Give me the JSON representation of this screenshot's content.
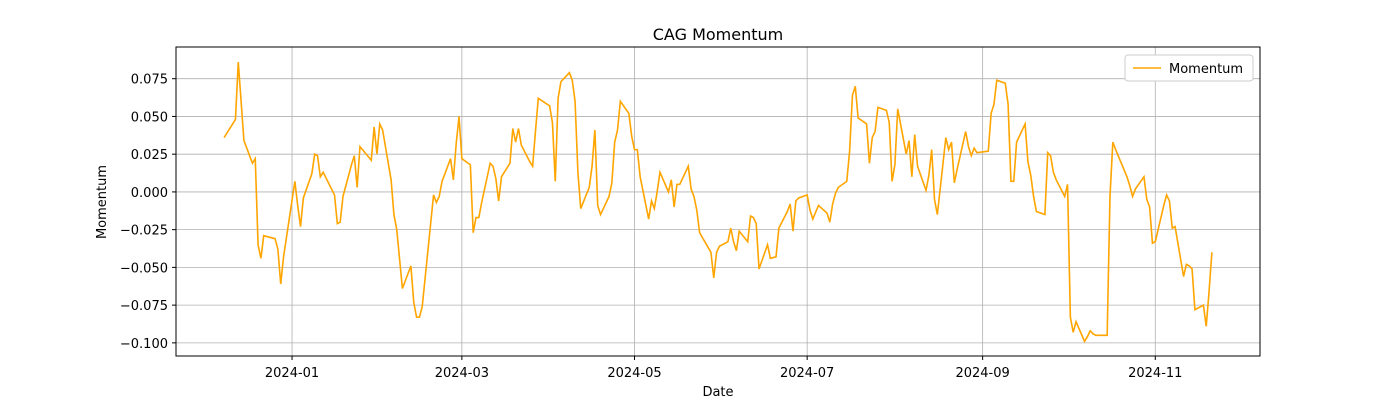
{
  "chart_data": {
    "type": "line",
    "title": "CAG Momentum",
    "xlabel": "Date",
    "ylabel": "Momentum",
    "grid": true,
    "legend": "upper right",
    "xlim": [
      "2023-11-21",
      "2024-12-08"
    ],
    "xticks": [
      {
        "value": "2024-01-01",
        "label": "2024-01"
      },
      {
        "value": "2024-03-01",
        "label": "2024-03"
      },
      {
        "value": "2024-05-01",
        "label": "2024-05"
      },
      {
        "value": "2024-07-01",
        "label": "2024-07"
      },
      {
        "value": "2024-09-01",
        "label": "2024-09"
      },
      {
        "value": "2024-11-01",
        "label": "2024-11"
      }
    ],
    "ylim": [
      -0.1087,
      0.096
    ],
    "yticks": [
      {
        "value": -0.1,
        "label": "−0.100"
      },
      {
        "value": -0.075,
        "label": "−0.075"
      },
      {
        "value": -0.05,
        "label": "−0.050"
      },
      {
        "value": -0.025,
        "label": "−0.025"
      },
      {
        "value": 0,
        "label": "0.000"
      },
      {
        "value": 0.025,
        "label": "0.025"
      },
      {
        "value": 0.05,
        "label": "0.050"
      },
      {
        "value": 0.075,
        "label": "0.075"
      }
    ],
    "x": [
      "2023-12-08",
      "2023-12-12",
      "2023-12-13",
      "2023-12-15",
      "2023-12-18",
      "2023-12-19",
      "2023-12-20",
      "2023-12-21",
      "2023-12-22",
      "2023-12-26",
      "2023-12-27",
      "2023-12-28",
      "2023-12-29",
      "2024-01-02",
      "2024-01-03",
      "2024-01-04",
      "2024-01-05",
      "2024-01-08",
      "2024-01-09",
      "2024-01-10",
      "2024-01-11",
      "2024-01-12",
      "2024-01-16",
      "2024-01-17",
      "2024-01-18",
      "2024-01-19",
      "2024-01-22",
      "2024-01-23",
      "2024-01-24",
      "2024-01-25",
      "2024-01-29",
      "2024-01-30",
      "2024-01-31",
      "2024-02-01",
      "2024-02-02",
      "2024-02-05",
      "2024-02-06",
      "2024-02-07",
      "2024-02-09",
      "2024-02-12",
      "2024-02-13",
      "2024-02-14",
      "2024-02-15",
      "2024-02-16",
      "2024-02-20",
      "2024-02-21",
      "2024-02-22",
      "2024-02-23",
      "2024-02-26",
      "2024-02-27",
      "2024-02-28",
      "2024-02-29",
      "2024-03-01",
      "2024-03-04",
      "2024-03-05",
      "2024-03-06",
      "2024-03-07",
      "2024-03-08",
      "2024-03-11",
      "2024-03-12",
      "2024-03-13",
      "2024-03-14",
      "2024-03-15",
      "2024-03-18",
      "2024-03-19",
      "2024-03-20",
      "2024-03-21",
      "2024-03-22",
      "2024-03-25",
      "2024-03-26",
      "2024-03-27",
      "2024-03-28",
      "2024-04-01",
      "2024-04-02",
      "2024-04-03",
      "2024-04-04",
      "2024-04-05",
      "2024-04-08",
      "2024-04-09",
      "2024-04-10",
      "2024-04-11",
      "2024-04-12",
      "2024-04-15",
      "2024-04-16",
      "2024-04-17",
      "2024-04-18",
      "2024-04-19",
      "2024-04-22",
      "2024-04-23",
      "2024-04-24",
      "2024-04-25",
      "2024-04-26",
      "2024-04-29",
      "2024-04-30",
      "2024-05-01",
      "2024-05-02",
      "2024-05-03",
      "2024-05-06",
      "2024-05-07",
      "2024-05-08",
      "2024-05-09",
      "2024-05-10",
      "2024-05-13",
      "2024-05-14",
      "2024-05-15",
      "2024-05-16",
      "2024-05-17",
      "2024-05-20",
      "2024-05-21",
      "2024-05-22",
      "2024-05-23",
      "2024-05-24",
      "2024-05-28",
      "2024-05-29",
      "2024-05-30",
      "2024-05-31",
      "2024-06-03",
      "2024-06-04",
      "2024-06-05",
      "2024-06-06",
      "2024-06-07",
      "2024-06-10",
      "2024-06-11",
      "2024-06-12",
      "2024-06-13",
      "2024-06-14",
      "2024-06-17",
      "2024-06-18",
      "2024-06-20",
      "2024-06-21",
      "2024-06-24",
      "2024-06-25",
      "2024-06-26",
      "2024-06-27",
      "2024-06-28",
      "2024-07-01",
      "2024-07-02",
      "2024-07-03",
      "2024-07-05",
      "2024-07-08",
      "2024-07-09",
      "2024-07-10",
      "2024-07-11",
      "2024-07-12",
      "2024-07-15",
      "2024-07-16",
      "2024-07-17",
      "2024-07-18",
      "2024-07-19",
      "2024-07-22",
      "2024-07-23",
      "2024-07-24",
      "2024-07-25",
      "2024-07-26",
      "2024-07-29",
      "2024-07-30",
      "2024-07-31",
      "2024-08-01",
      "2024-08-02",
      "2024-08-05",
      "2024-08-06",
      "2024-08-07",
      "2024-08-08",
      "2024-08-09",
      "2024-08-12",
      "2024-08-13",
      "2024-08-14",
      "2024-08-15",
      "2024-08-16",
      "2024-08-19",
      "2024-08-20",
      "2024-08-21",
      "2024-08-22",
      "2024-08-23",
      "2024-08-26",
      "2024-08-27",
      "2024-08-28",
      "2024-08-29",
      "2024-08-30",
      "2024-09-03",
      "2024-09-04",
      "2024-09-05",
      "2024-09-06",
      "2024-09-09",
      "2024-09-10",
      "2024-09-11",
      "2024-09-12",
      "2024-09-13",
      "2024-09-16",
      "2024-09-17",
      "2024-09-18",
      "2024-09-19",
      "2024-09-20",
      "2024-09-23",
      "2024-09-24",
      "2024-09-25",
      "2024-09-26",
      "2024-09-27",
      "2024-09-30",
      "2024-10-01",
      "2024-10-02",
      "2024-10-03",
      "2024-10-04",
      "2024-10-07",
      "2024-10-08",
      "2024-10-09",
      "2024-10-10",
      "2024-10-11",
      "2024-10-14",
      "2024-10-15",
      "2024-10-16",
      "2024-10-17",
      "2024-10-18",
      "2024-10-22",
      "2024-10-23",
      "2024-10-24",
      "2024-10-25",
      "2024-10-28",
      "2024-10-29",
      "2024-10-30",
      "2024-10-31",
      "2024-11-01",
      "2024-11-04",
      "2024-11-05",
      "2024-11-06",
      "2024-11-07",
      "2024-11-08",
      "2024-11-11",
      "2024-11-12",
      "2024-11-13",
      "2024-11-14",
      "2024-11-15",
      "2024-11-18",
      "2024-11-19",
      "2024-11-20",
      "2024-11-21"
    ],
    "series": [
      {
        "name": "Momentum",
        "color": "#ffa500",
        "values": [
          0.036,
          0.048,
          0.086,
          0.034,
          0.019,
          0.022,
          -0.035,
          -0.044,
          -0.029,
          -0.031,
          -0.038,
          -0.061,
          -0.043,
          0.007,
          -0.009,
          -0.023,
          -0.004,
          0.012,
          0.025,
          0.024,
          0.01,
          0.013,
          -0.002,
          -0.021,
          -0.02,
          -0.003,
          0.018,
          0.024,
          0.003,
          0.03,
          0.021,
          0.043,
          0.025,
          0.045,
          0.041,
          0.008,
          -0.015,
          -0.025,
          -0.064,
          -0.049,
          -0.073,
          -0.083,
          -0.083,
          -0.076,
          -0.002,
          -0.007,
          -0.003,
          0.007,
          0.022,
          0.008,
          0.032,
          0.05,
          0.022,
          0.018,
          -0.027,
          -0.017,
          -0.017,
          -0.007,
          0.019,
          0.017,
          0.009,
          -0.006,
          0.01,
          0.019,
          0.042,
          0.033,
          0.042,
          0.031,
          0.02,
          0.017,
          0.04,
          0.062,
          0.057,
          0.046,
          0.007,
          0.062,
          0.073,
          0.079,
          0.074,
          0.06,
          0.013,
          -0.011,
          0.003,
          0.017,
          0.041,
          -0.009,
          -0.015,
          -0.003,
          0.006,
          0.033,
          0.041,
          0.06,
          0.052,
          0.037,
          0.028,
          0.028,
          0.01,
          -0.018,
          -0.006,
          -0.011,
          0.0,
          0.013,
          0.0,
          0.008,
          -0.01,
          0.005,
          0.005,
          0.017,
          0.002,
          -0.003,
          -0.012,
          -0.027,
          -0.04,
          -0.057,
          -0.04,
          -0.036,
          -0.033,
          -0.024,
          -0.033,
          -0.039,
          -0.026,
          -0.033,
          -0.016,
          -0.017,
          -0.021,
          -0.051,
          -0.035,
          -0.044,
          -0.043,
          -0.024,
          -0.013,
          -0.008,
          -0.026,
          -0.006,
          -0.004,
          -0.002,
          -0.012,
          -0.018,
          -0.009,
          -0.014,
          -0.02,
          -0.008,
          -0.001,
          0.003,
          0.007,
          0.027,
          0.064,
          0.07,
          0.049,
          0.045,
          0.019,
          0.036,
          0.04,
          0.056,
          0.054,
          0.046,
          0.007,
          0.018,
          0.055,
          0.025,
          0.034,
          0.01,
          0.038,
          0.017,
          0.001,
          0.011,
          0.028,
          -0.005,
          -0.015,
          0.036,
          0.028,
          0.033,
          0.006,
          0.015,
          0.04,
          0.03,
          0.024,
          0.029,
          0.026,
          0.027,
          0.052,
          0.058,
          0.074,
          0.072,
          0.058,
          0.007,
          0.007,
          0.033,
          0.045,
          0.02,
          0.011,
          -0.003,
          -0.013,
          -0.015,
          0.026,
          0.024,
          0.013,
          0.008,
          -0.003,
          0.005,
          -0.083,
          -0.093,
          -0.086,
          -0.099,
          -0.096,
          -0.092,
          -0.094,
          -0.095,
          -0.095,
          -0.095,
          -0.003,
          0.033,
          0.028,
          0.01,
          0.004,
          -0.003,
          0.002,
          0.01,
          -0.005,
          -0.01,
          -0.034,
          -0.033,
          -0.009,
          -0.002,
          -0.006,
          -0.024,
          -0.023,
          -0.056,
          -0.048,
          -0.049,
          -0.051,
          -0.078,
          -0.075,
          -0.089,
          -0.066,
          -0.04
        ]
      }
    ]
  }
}
